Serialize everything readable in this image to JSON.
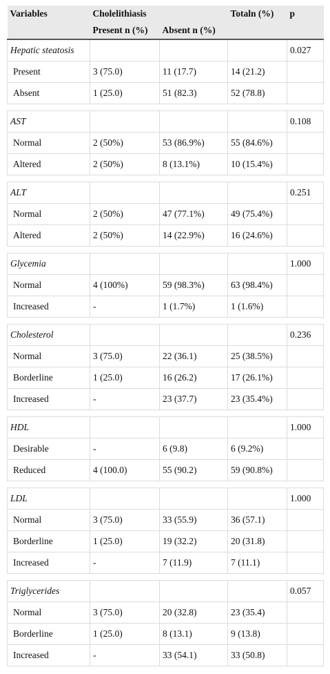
{
  "header": {
    "variables": "Variables",
    "cholelithiasis": "Cholelithiasis",
    "total": "Totaln (%)",
    "p": "p",
    "present": "Present n (%)",
    "absent": "Absent n (%)"
  },
  "groups": [
    {
      "name": "Hepatic steatosis",
      "p": "0.027",
      "rows": [
        [
          "Present",
          "3 (75.0)",
          "11 (17.7)",
          "14 (21.2)"
        ],
        [
          "Absent",
          "1 (25.0)",
          "51 (82.3)",
          "52 (78.8)"
        ]
      ]
    },
    {
      "name": "AST",
      "p": "0.108",
      "rows": [
        [
          "Normal",
          "2 (50%)",
          "53 (86.9%)",
          "55 (84.6%)"
        ],
        [
          "Altered",
          "2 (50%)",
          "8 (13.1%)",
          "10 (15.4%)"
        ]
      ]
    },
    {
      "name": "ALT",
      "p": "0.251",
      "rows": [
        [
          "Normal",
          "2 (50%)",
          "47 (77.1%)",
          "49 (75.4%)"
        ],
        [
          "Altered",
          "2 (50%)",
          "14 (22.9%)",
          "16 (24.6%)"
        ]
      ]
    },
    {
      "name": "Glycemia",
      "p": "1.000",
      "rows": [
        [
          "Normal",
          "4 (100%)",
          "59 (98.3%)",
          "63 (98.4%)"
        ],
        [
          "Increased",
          "-",
          "1 (1.7%)",
          "1 (1.6%)"
        ]
      ]
    },
    {
      "name": "Cholesterol",
      "p": "0.236",
      "rows": [
        [
          "Normal",
          "3 (75.0)",
          "22 (36.1)",
          "25 (38.5%)"
        ],
        [
          "Borderline",
          "1 (25.0)",
          "16 (26.2)",
          "17 (26.1%)"
        ],
        [
          "Increased",
          "-",
          "23 (37.7)",
          "23 (35.4%)"
        ]
      ]
    },
    {
      "name": "HDL",
      "p": "1.000",
      "rows": [
        [
          "Desirable",
          "-",
          "6 (9.8)",
          "6 (9.2%)"
        ],
        [
          "Reduced",
          "4 (100.0)",
          "55 (90.2)",
          "59 (90.8%)"
        ]
      ]
    },
    {
      "name": "LDL",
      "p": "1.000",
      "rows": [
        [
          "Normal",
          "3 (75.0)",
          "33 (55.9)",
          "36 (57.1)"
        ],
        [
          "Borderline",
          "1 (25.0)",
          "19 (32.2)",
          "20 (31.8)"
        ],
        [
          "Increased",
          "-",
          "7 (11.9)",
          "7 (11.1)"
        ]
      ]
    },
    {
      "name": "Triglycerides",
      "p": "0.057",
      "rows": [
        [
          "Normal",
          "3 (75.0)",
          "20 (32.8)",
          "23 (35.4)"
        ],
        [
          "Borderline",
          "1 (25.0)",
          "8 (13.1)",
          "9 (13.8)"
        ],
        [
          "Increased",
          "-",
          "33 (54.1)",
          "33 (50.8)"
        ]
      ]
    }
  ]
}
